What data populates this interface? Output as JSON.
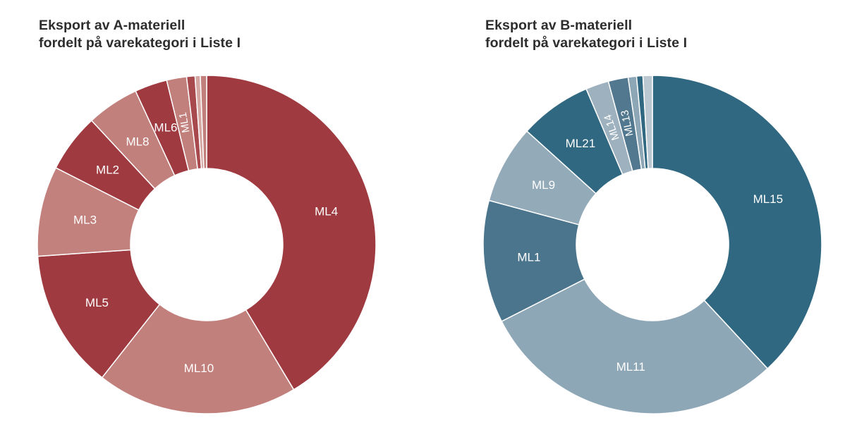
{
  "figure": {
    "background": "#ffffff",
    "label_text_color": "#ffffff",
    "title_text_color": "#2d2d2d"
  },
  "chart_data": [
    {
      "type": "pie",
      "variant": "donut",
      "title": "Eksport av A-materiell fordelt på varekategori i Liste I",
      "title_lines": [
        "Eksport av A-materiell",
        "fordelt på varekategori i Liste I"
      ],
      "unit": "percent share (approx., estimated from arc angles)",
      "start_angle": "12 o'clock, clockwise",
      "inner_radius_ratio": 0.45,
      "label_color": "#ffffff",
      "palette": {
        "dark": "#9e3a40",
        "light": "#c2807c"
      },
      "segments": [
        {
          "label": "ML4",
          "value": 41.4,
          "color": "#9e3a40"
        },
        {
          "label": "ML10",
          "value": 19.2,
          "color": "#c2807c"
        },
        {
          "label": "ML5",
          "value": 13.3,
          "color": "#9e3a40"
        },
        {
          "label": "ML3",
          "value": 8.6,
          "color": "#c2817d"
        },
        {
          "label": "ML2",
          "value": 5.6,
          "color": "#9e3a40"
        },
        {
          "label": "ML8",
          "value": 5.0,
          "color": "#c2807c"
        },
        {
          "label": "ML6",
          "value": 3.1,
          "color": "#9e3a40"
        },
        {
          "label": "ML1",
          "value": 1.9,
          "color": "#c2807c"
        },
        {
          "label": "",
          "value": 0.8,
          "color": "#a8494e"
        },
        {
          "label": "",
          "value": 0.5,
          "color": "#d4a7a3"
        },
        {
          "label": "",
          "value": 0.6,
          "color": "#c2807c"
        }
      ]
    },
    {
      "type": "pie",
      "variant": "donut",
      "title": "Eksport av B-materiell fordelt på varekategori i Liste I",
      "title_lines": [
        "Eksport av B-materiell",
        "fordelt på varekategori i Liste I"
      ],
      "unit": "percent share (approx., estimated from arc angles)",
      "start_angle": "12 o'clock, clockwise",
      "inner_radius_ratio": 0.45,
      "label_color": "#ffffff",
      "palette": {
        "dark": "#2f6880",
        "light": "#8ea7b7"
      },
      "segments": [
        {
          "label": "ML15",
          "value": 38.1,
          "color": "#2f6880"
        },
        {
          "label": "ML11",
          "value": 29.4,
          "color": "#8ea7b7"
        },
        {
          "label": "ML1",
          "value": 11.7,
          "color": "#4a758d"
        },
        {
          "label": "ML9",
          "value": 7.5,
          "color": "#93aab9"
        },
        {
          "label": "ML21",
          "value": 6.9,
          "color": "#2f6880"
        },
        {
          "label": "ML14",
          "value": 2.2,
          "color": "#9db1bf"
        },
        {
          "label": "ML13",
          "value": 1.9,
          "color": "#52788f"
        },
        {
          "label": "",
          "value": 0.8,
          "color": "#8ea7b7"
        },
        {
          "label": "",
          "value": 0.6,
          "color": "#2f6880"
        },
        {
          "label": "",
          "value": 0.9,
          "color": "#bcc8d1"
        }
      ]
    }
  ]
}
